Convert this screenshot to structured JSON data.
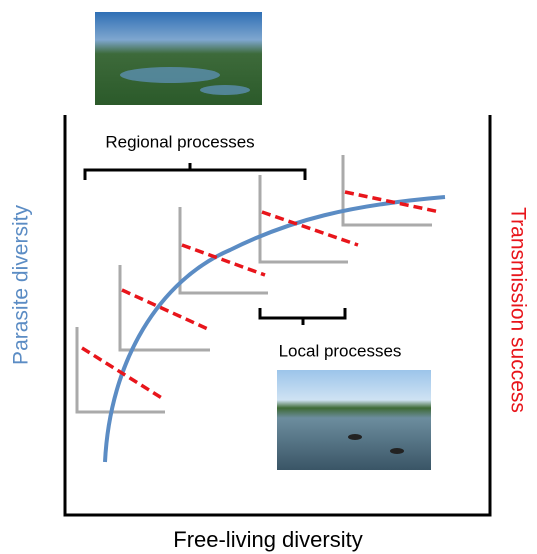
{
  "labels": {
    "regional": "Regional processes",
    "local": "Local processes",
    "y_axis": "Parasite diversity",
    "y2_axis": "Transmission success",
    "x_axis": "Free-living diversity"
  }
}
